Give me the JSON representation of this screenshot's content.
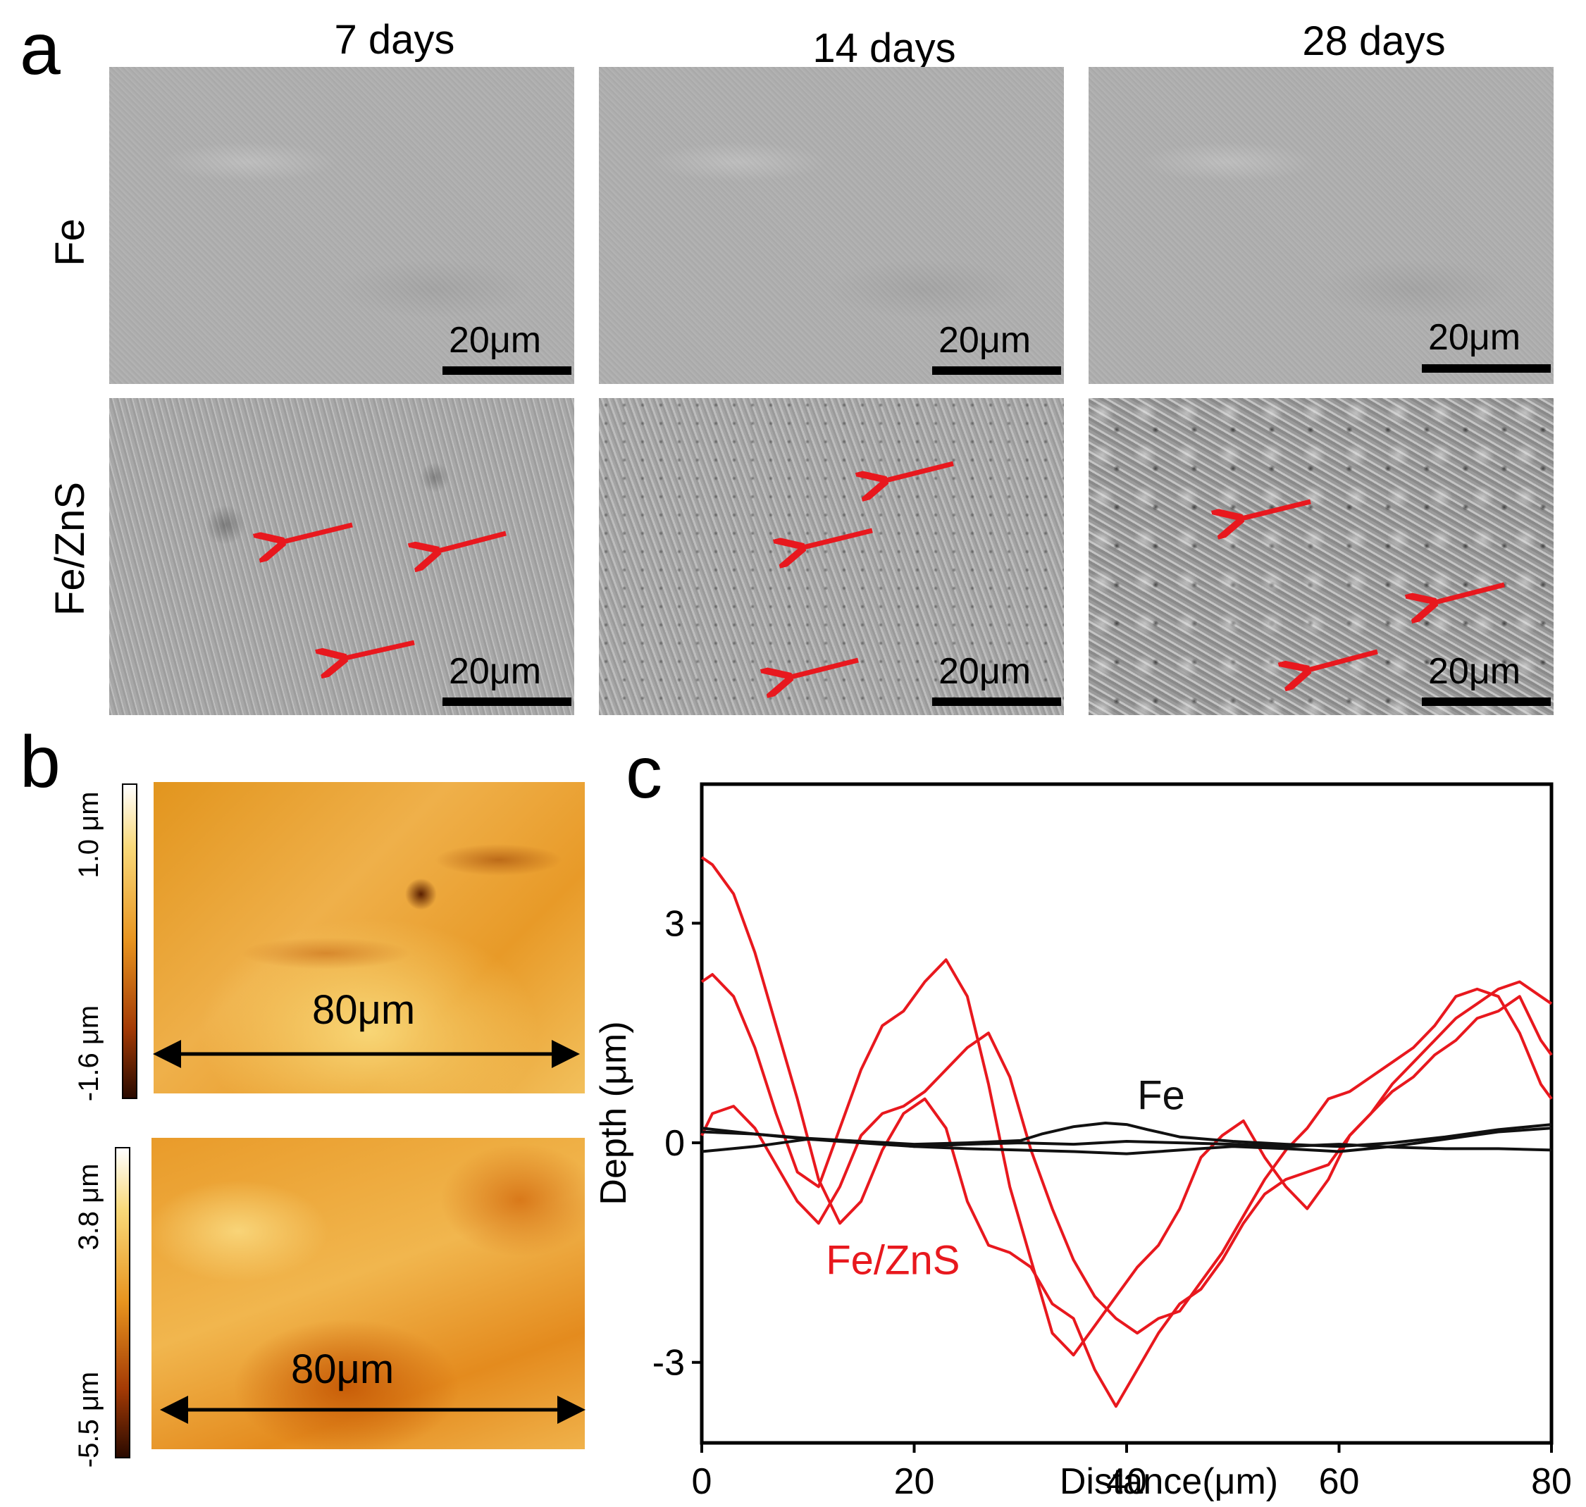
{
  "panel_a": {
    "letter": "a",
    "columns": [
      "7 days",
      "14 days",
      "28 days"
    ],
    "rows": [
      "Fe",
      "Fe/ZnS"
    ],
    "scale_label": "20μm",
    "arrow_color": "#e8181e"
  },
  "panel_b": {
    "letter": "b",
    "afm_maps": [
      {
        "max_label": "1.0 μm",
        "min_label": "-1.6 μm",
        "dimension_label": "80μm"
      },
      {
        "max_label": "3.8 μm",
        "min_label": "-5.5 μm",
        "dimension_label": "80μm"
      }
    ]
  },
  "panel_c": {
    "letter": "c",
    "legend": {
      "fe": "Fe",
      "fe_zns": "Fe/ZnS"
    }
  },
  "chart_data": {
    "type": "line",
    "title": "",
    "xlabel": "Distance(μm)",
    "ylabel": "Depth (μm)",
    "xlim": [
      0,
      80
    ],
    "ylim": [
      -4.1,
      4.9
    ],
    "xticks": [
      0,
      20,
      40,
      60,
      80
    ],
    "yticks": [
      3,
      0,
      -3
    ],
    "grid": false,
    "colors": {
      "Fe": "#111111",
      "Fe/ZnS": "#e8181e"
    },
    "series": [
      {
        "name": "Fe/ZnS",
        "group": "Fe/ZnS",
        "x": [
          0,
          1,
          3,
          5,
          7,
          9,
          11,
          13,
          15,
          17,
          19,
          21,
          23,
          25,
          27,
          29,
          31,
          33,
          35,
          37,
          39,
          41,
          43,
          45,
          47,
          49,
          51,
          53,
          55,
          57,
          59,
          61,
          63,
          65,
          67,
          69,
          71,
          73,
          75,
          77,
          79,
          80
        ],
        "y": [
          3.9,
          3.8,
          3.4,
          2.6,
          1.6,
          0.6,
          -0.5,
          -1.1,
          -0.8,
          -0.1,
          0.4,
          0.6,
          0.2,
          -0.8,
          -1.4,
          -1.5,
          -1.7,
          -2.2,
          -2.4,
          -3.1,
          -3.6,
          -3.1,
          -2.6,
          -2.2,
          -2.0,
          -1.6,
          -1.1,
          -0.7,
          -0.5,
          -0.4,
          -0.3,
          0.1,
          0.4,
          0.7,
          0.9,
          1.2,
          1.4,
          1.7,
          1.8,
          2.0,
          1.4,
          1.2
        ]
      },
      {
        "name": "Fe/ZnS",
        "group": "Fe/ZnS",
        "x": [
          0,
          1,
          3,
          5,
          7,
          9,
          11,
          13,
          15,
          17,
          19,
          21,
          23,
          25,
          27,
          29,
          31,
          33,
          35,
          37,
          39,
          41,
          43,
          45,
          47,
          49,
          51,
          53,
          55,
          57,
          59,
          61,
          63,
          65,
          67,
          69,
          71,
          73,
          75,
          77,
          79,
          80
        ],
        "y": [
          2.2,
          2.3,
          2.0,
          1.3,
          0.4,
          -0.4,
          -0.6,
          0.2,
          1.0,
          1.6,
          1.8,
          2.2,
          2.5,
          2.0,
          0.8,
          -0.6,
          -1.6,
          -2.6,
          -2.9,
          -2.5,
          -2.1,
          -1.7,
          -1.4,
          -0.9,
          -0.2,
          0.1,
          0.3,
          -0.2,
          -0.6,
          -0.9,
          -0.5,
          0.1,
          0.4,
          0.8,
          1.1,
          1.4,
          1.7,
          1.9,
          2.1,
          2.2,
          2.0,
          1.9
        ]
      },
      {
        "name": "Fe/ZnS",
        "group": "Fe/ZnS",
        "x": [
          0,
          1,
          3,
          5,
          7,
          9,
          11,
          13,
          15,
          17,
          19,
          21,
          23,
          25,
          27,
          29,
          31,
          33,
          35,
          37,
          39,
          41,
          43,
          45,
          47,
          49,
          51,
          53,
          55,
          57,
          59,
          61,
          63,
          65,
          67,
          69,
          71,
          73,
          75,
          77,
          79,
          80
        ],
        "y": [
          0.1,
          0.4,
          0.5,
          0.2,
          -0.3,
          -0.8,
          -1.1,
          -0.6,
          0.1,
          0.4,
          0.5,
          0.7,
          1.0,
          1.3,
          1.5,
          0.9,
          -0.1,
          -0.9,
          -1.6,
          -2.1,
          -2.4,
          -2.6,
          -2.4,
          -2.3,
          -1.9,
          -1.5,
          -1.0,
          -0.5,
          -0.1,
          0.2,
          0.6,
          0.7,
          0.9,
          1.1,
          1.3,
          1.6,
          2.0,
          2.1,
          2.0,
          1.5,
          0.8,
          0.6
        ]
      },
      {
        "name": "Fe",
        "group": "Fe",
        "x": [
          0,
          5,
          10,
          15,
          20,
          25,
          30,
          32,
          35,
          38,
          40,
          42,
          45,
          50,
          55,
          60,
          65,
          70,
          75,
          80
        ],
        "y": [
          0.15,
          0.12,
          0.06,
          0.02,
          -0.02,
          0.0,
          0.03,
          0.12,
          0.22,
          0.27,
          0.25,
          0.18,
          0.08,
          0.02,
          -0.02,
          -0.05,
          0.0,
          0.08,
          0.18,
          0.25
        ]
      },
      {
        "name": "Fe",
        "group": "Fe",
        "x": [
          0,
          5,
          10,
          15,
          20,
          25,
          30,
          35,
          40,
          45,
          50,
          55,
          60,
          65,
          70,
          75,
          80
        ],
        "y": [
          0.2,
          0.12,
          0.05,
          0.02,
          -0.05,
          -0.08,
          -0.1,
          -0.12,
          -0.15,
          -0.1,
          -0.05,
          -0.08,
          -0.12,
          -0.05,
          0.05,
          0.15,
          0.2
        ]
      },
      {
        "name": "Fe",
        "group": "Fe",
        "x": [
          0,
          5,
          10,
          15,
          20,
          25,
          30,
          35,
          40,
          45,
          50,
          55,
          60,
          65,
          70,
          75,
          80
        ],
        "y": [
          -0.12,
          -0.05,
          0.05,
          0.0,
          -0.05,
          -0.02,
          0.0,
          -0.02,
          0.02,
          0.0,
          -0.02,
          -0.05,
          -0.02,
          -0.06,
          -0.08,
          -0.08,
          -0.1
        ]
      }
    ],
    "annotations": [
      {
        "text": "Fe",
        "x": 41,
        "y": 0.65
      },
      {
        "text": "Fe/ZnS",
        "x": 18,
        "y": -1.6
      }
    ]
  }
}
